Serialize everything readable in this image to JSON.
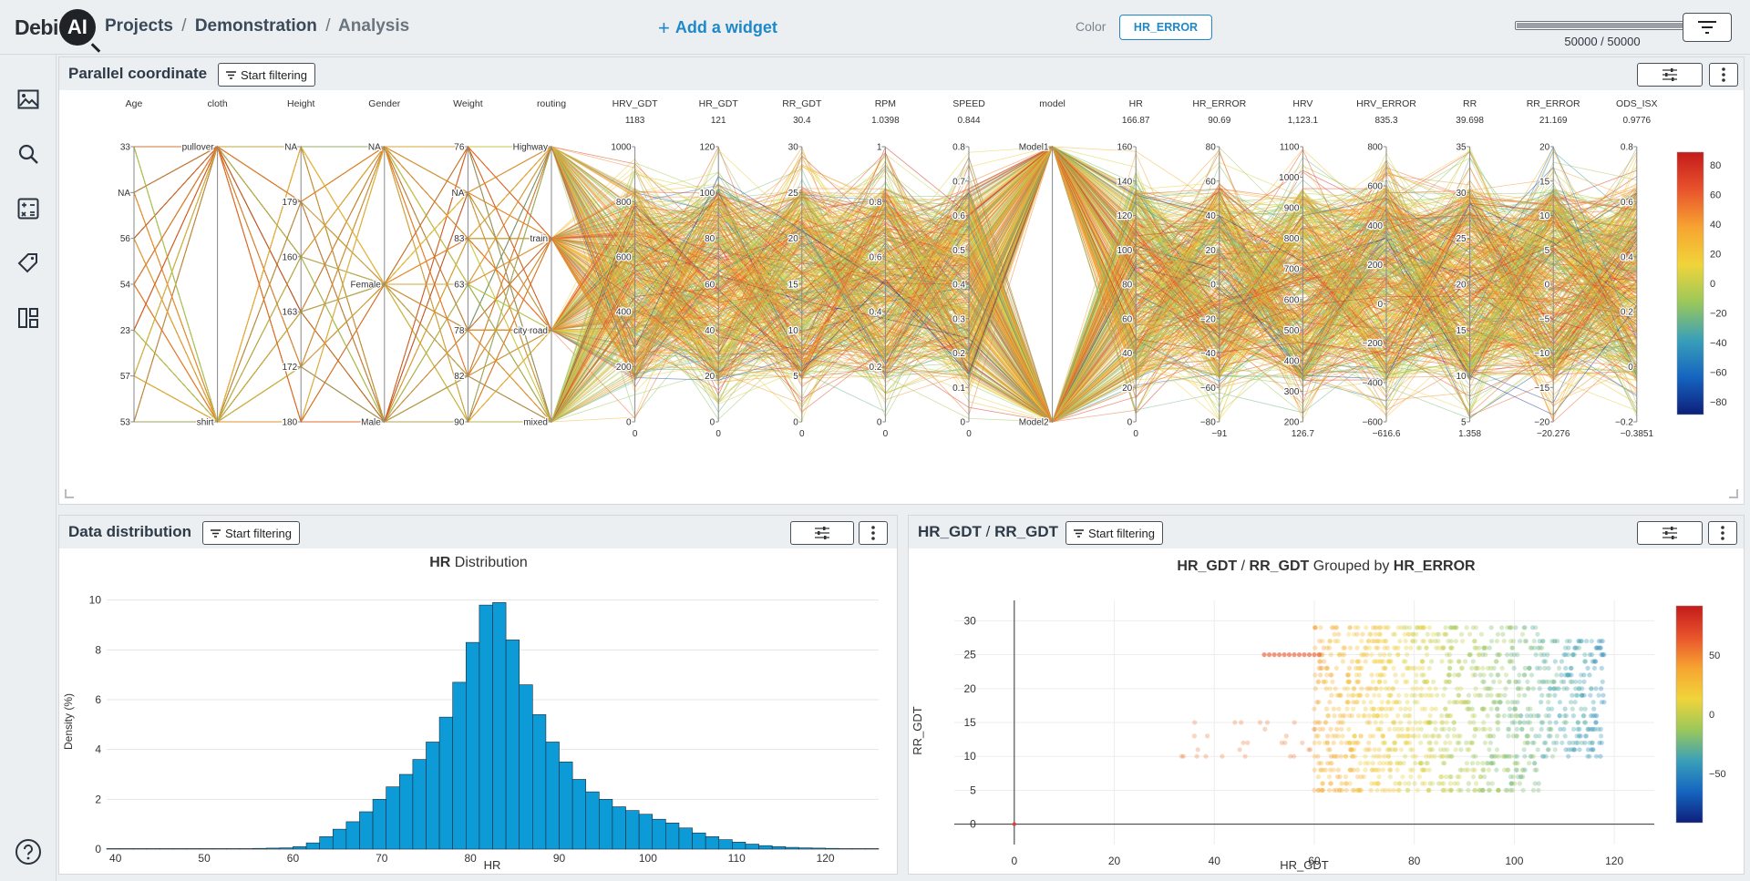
{
  "app": {
    "logo_text": "Debi",
    "logo_badge": "AI"
  },
  "breadcrumb": {
    "projects": "Projects",
    "project": "Demonstration",
    "page": "Analysis",
    "sep": "/"
  },
  "toolbar": {
    "add_widget": "Add a widget",
    "color_label": "Color",
    "color_value": "HR_ERROR",
    "sample_count": "50000 / 50000",
    "sample_fraction": 1.0
  },
  "sidebar": {
    "items": [
      "images",
      "search",
      "statistics",
      "tags",
      "widgets",
      "help"
    ]
  },
  "parallel_panel": {
    "title": "Parallel coordinate",
    "filter_label": "Start filtering",
    "axes": [
      {
        "name": "Age",
        "top": "",
        "bottom": "",
        "ticks": [
          "33",
          "NA",
          "56",
          "54",
          "23",
          "57",
          "53"
        ]
      },
      {
        "name": "cloth",
        "top": "",
        "bottom": "",
        "ticks": [
          "pullover",
          "shirt"
        ]
      },
      {
        "name": "Height",
        "top": "",
        "bottom": "",
        "ticks": [
          "NA",
          "179",
          "160",
          "163",
          "172",
          "180"
        ]
      },
      {
        "name": "Gender",
        "top": "",
        "bottom": "",
        "ticks": [
          "NA",
          "Female",
          "Male"
        ]
      },
      {
        "name": "Weight",
        "top": "",
        "bottom": "",
        "ticks": [
          "76",
          "NA",
          "83",
          "63",
          "78",
          "82",
          "90"
        ]
      },
      {
        "name": "routing",
        "top": "",
        "bottom": "",
        "ticks": [
          "Highway",
          "train",
          "city road",
          "mixed"
        ]
      },
      {
        "name": "HRV_GDT",
        "top": "1183",
        "bottom": "0",
        "ticks": [
          "1000",
          "800",
          "600",
          "400",
          "200",
          "0"
        ]
      },
      {
        "name": "HR_GDT",
        "top": "121",
        "bottom": "0",
        "ticks": [
          "120",
          "100",
          "80",
          "60",
          "40",
          "20",
          "0"
        ]
      },
      {
        "name": "RR_GDT",
        "top": "30.4",
        "bottom": "0",
        "ticks": [
          "30",
          "25",
          "20",
          "15",
          "10",
          "5",
          "0"
        ]
      },
      {
        "name": "RPM",
        "top": "1.0398",
        "bottom": "0",
        "ticks": [
          "1",
          "0.8",
          "0.6",
          "0.4",
          "0.2",
          "0"
        ]
      },
      {
        "name": "SPEED",
        "top": "0.844",
        "bottom": "0",
        "ticks": [
          "0.8",
          "0.7",
          "0.6",
          "0.5",
          "0.4",
          "0.3",
          "0.2",
          "0.1",
          "0"
        ]
      },
      {
        "name": "model",
        "top": "",
        "bottom": "",
        "ticks": [
          "Model1",
          "Model2"
        ]
      },
      {
        "name": "HR",
        "top": "166.87",
        "bottom": "0",
        "ticks": [
          "160",
          "140",
          "120",
          "100",
          "80",
          "60",
          "40",
          "20",
          "0"
        ]
      },
      {
        "name": "HR_ERROR",
        "top": "90.69",
        "bottom": "−91",
        "ticks": [
          "80",
          "60",
          "40",
          "20",
          "0",
          "−20",
          "−40",
          "−60",
          "−80"
        ]
      },
      {
        "name": "HRV",
        "top": "1,123.1",
        "bottom": "126.7",
        "ticks": [
          "1100",
          "1000",
          "900",
          "800",
          "700",
          "600",
          "500",
          "400",
          "300",
          "200"
        ]
      },
      {
        "name": "HRV_ERROR",
        "top": "835.3",
        "bottom": "−616.6",
        "ticks": [
          "800",
          "600",
          "400",
          "200",
          "0",
          "−200",
          "−400",
          "−600"
        ]
      },
      {
        "name": "RR",
        "top": "39.698",
        "bottom": "1.358",
        "ticks": [
          "35",
          "30",
          "25",
          "20",
          "15",
          "10",
          "5"
        ]
      },
      {
        "name": "RR_ERROR",
        "top": "21.169",
        "bottom": "−20.276",
        "ticks": [
          "20",
          "15",
          "10",
          "5",
          "0",
          "−5",
          "−10",
          "−15",
          "−20"
        ]
      },
      {
        "name": "ODS_ISX",
        "top": "0.9776",
        "bottom": "−0.3851",
        "ticks": [
          "0.8",
          "0.6",
          "0.4",
          "0.2",
          "0",
          "−0.2"
        ]
      }
    ],
    "colorbar_ticks": [
      "80",
      "60",
      "40",
      "20",
      "0",
      "−20",
      "−40",
      "−60",
      "−80"
    ]
  },
  "distribution_panel": {
    "title": "Data distribution",
    "filter_label": "Start filtering",
    "chart_title_bold": "HR",
    "chart_title_rest": "Distribution",
    "xlabel": "HR",
    "ylabel": "Density (%)"
  },
  "scatter_panel": {
    "title_a": "HR_GDT",
    "title_sep": "/",
    "title_b": "RR_GDT",
    "filter_label": "Start filtering",
    "chart_title_a": "HR_GDT",
    "chart_title_sep": "/",
    "chart_title_b": "RR_GDT",
    "chart_title_mid": "Grouped by",
    "chart_title_c": "HR_ERROR",
    "xlabel": "HR_GDT",
    "ylabel": "RR_GDT",
    "colorbar_ticks": [
      "50",
      "0",
      "−50"
    ]
  },
  "chart_data": [
    {
      "type": "bar",
      "title": "HR Distribution",
      "xlabel": "HR",
      "ylabel": "Density (%)",
      "xlim": [
        39,
        126
      ],
      "ylim": [
        0,
        10.5
      ],
      "xticks": [
        40,
        50,
        60,
        70,
        80,
        90,
        100,
        110,
        120
      ],
      "yticks": [
        0,
        2,
        4,
        6,
        8,
        10
      ],
      "bin_width": 1.5,
      "bin_start": 39,
      "values": [
        0.02,
        0.02,
        0.02,
        0.02,
        0.02,
        0.02,
        0.02,
        0.02,
        0.02,
        0.02,
        0.02,
        0.03,
        0.04,
        0.05,
        0.1,
        0.25,
        0.5,
        0.8,
        1.1,
        1.5,
        2.0,
        2.5,
        3.0,
        3.6,
        4.3,
        5.3,
        6.7,
        8.3,
        9.8,
        9.9,
        8.4,
        6.6,
        5.4,
        4.3,
        3.5,
        2.8,
        2.3,
        2.0,
        1.7,
        1.55,
        1.4,
        1.2,
        1.05,
        0.85,
        0.65,
        0.5,
        0.38,
        0.28,
        0.2,
        0.14,
        0.1,
        0.07,
        0.05,
        0.04,
        0.03,
        0.02,
        0.02,
        0.02
      ],
      "bar_color": "#0d9bd8"
    },
    {
      "type": "scatter",
      "title": "HR_GDT / RR_GDT Grouped by HR_ERROR",
      "xlabel": "HR_GDT",
      "ylabel": "RR_GDT",
      "xlim": [
        -12,
        128
      ],
      "ylim": [
        -3,
        33
      ],
      "xticks": [
        0,
        20,
        40,
        60,
        80,
        100,
        120
      ],
      "yticks": [
        0,
        5,
        10,
        15,
        20,
        25,
        30
      ],
      "color_by": "HR_ERROR",
      "colorscale": [
        "#1a237e",
        "#1565c0",
        "#43a8b8",
        "#e8d830",
        "#f5a623",
        "#e53935"
      ],
      "clusters": [
        {
          "x": [
            60,
            118
          ],
          "y": [
            5,
            29
          ],
          "density": "high"
        },
        {
          "x": [
            33,
            60
          ],
          "y": [
            10,
            15
          ],
          "density": "low"
        },
        {
          "x": [
            50,
            60
          ],
          "y": [
            25,
            25
          ],
          "density": "low"
        }
      ]
    }
  ]
}
